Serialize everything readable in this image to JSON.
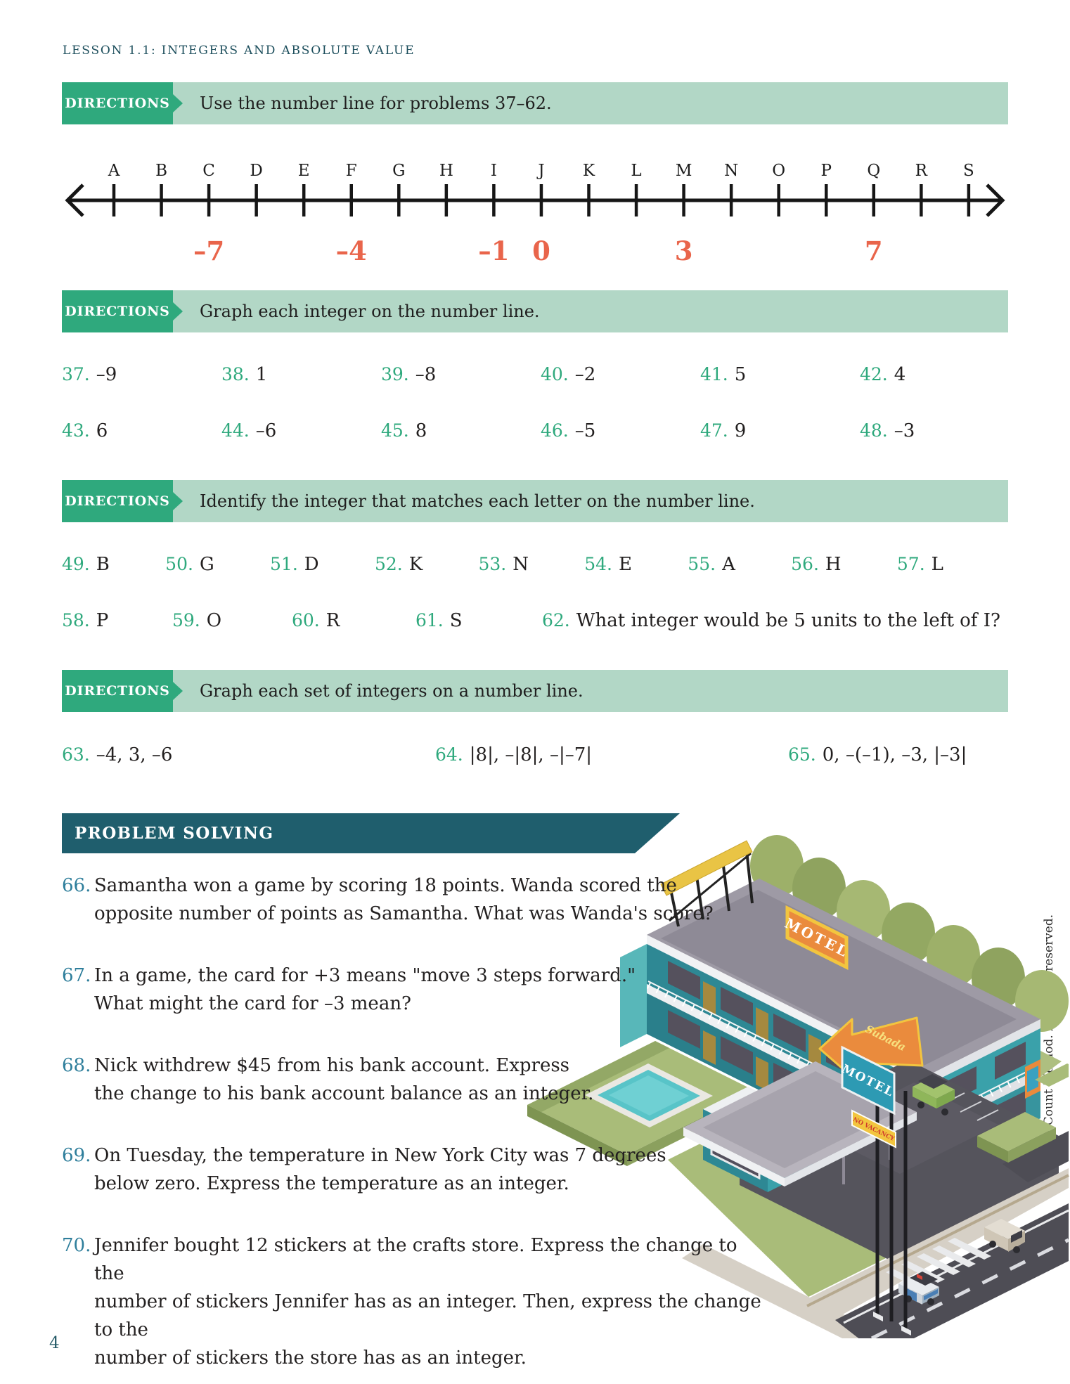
{
  "header": {
    "lesson": "LESSON 1.1: INTEGERS AND ABSOLUTE VALUE"
  },
  "colors": {
    "accent_green": "#2fa97d",
    "band_green": "#b2d7c6",
    "teal_dark": "#1f5e6d",
    "number_blue": "#2e7e9b",
    "numberline_label": "#e9654b"
  },
  "banners": {
    "b1": {
      "label": "DIRECTIONS",
      "text": "Use the number line for problems 37–62."
    },
    "b2": {
      "label": "DIRECTIONS",
      "text": "Graph each integer on the number line."
    },
    "b3": {
      "label": "DIRECTIONS",
      "text": "Identify the integer that matches each letter on the number line."
    },
    "b4": {
      "label": "DIRECTIONS",
      "text": "Graph each set of integers on a number line."
    }
  },
  "number_line": {
    "letters": [
      "A",
      "B",
      "C",
      "D",
      "E",
      "F",
      "G",
      "H",
      "I",
      "J",
      "K",
      "L",
      "M",
      "N",
      "O",
      "P",
      "Q",
      "R",
      "S"
    ],
    "value_labels": [
      {
        "index": 2,
        "text": "–7"
      },
      {
        "index": 5,
        "text": "–4"
      },
      {
        "index": 8,
        "text": "–1"
      },
      {
        "index": 9,
        "text": "0"
      },
      {
        "index": 12,
        "text": "3"
      },
      {
        "index": 16,
        "text": "7"
      }
    ]
  },
  "graph_problems": [
    {
      "num": "37.",
      "val": "–9"
    },
    {
      "num": "38.",
      "val": "1"
    },
    {
      "num": "39.",
      "val": "–8"
    },
    {
      "num": "40.",
      "val": "–2"
    },
    {
      "num": "41.",
      "val": "5"
    },
    {
      "num": "42.",
      "val": "4"
    },
    {
      "num": "43.",
      "val": "6"
    },
    {
      "num": "44.",
      "val": "–6"
    },
    {
      "num": "45.",
      "val": "8"
    },
    {
      "num": "46.",
      "val": "–5"
    },
    {
      "num": "47.",
      "val": "9"
    },
    {
      "num": "48.",
      "val": "–3"
    }
  ],
  "identify_row1": [
    {
      "num": "49.",
      "val": "B"
    },
    {
      "num": "50.",
      "val": "G"
    },
    {
      "num": "51.",
      "val": "D"
    },
    {
      "num": "52.",
      "val": "K"
    },
    {
      "num": "53.",
      "val": "N"
    },
    {
      "num": "54.",
      "val": "E"
    },
    {
      "num": "55.",
      "val": "A"
    },
    {
      "num": "56.",
      "val": "H"
    },
    {
      "num": "57.",
      "val": "L"
    }
  ],
  "identify_row2": [
    {
      "num": "58.",
      "val": "P"
    },
    {
      "num": "59.",
      "val": "O"
    },
    {
      "num": "60.",
      "val": "R"
    },
    {
      "num": "61.",
      "val": "S"
    },
    {
      "num": "62.",
      "val": "What integer would be 5 units to the left of I?"
    }
  ],
  "set_problems": [
    {
      "num": "63.",
      "val": "–4, 3, –6"
    },
    {
      "num": "64.",
      "val": "|8|, –|8|, –|–7|"
    },
    {
      "num": "65.",
      "val": "0, –(–1), –3, |–3|"
    }
  ],
  "problem_solving": {
    "title": "PROBLEM SOLVING",
    "problems": [
      {
        "num": "66.",
        "lines": [
          "Samantha won a game by scoring 18 points. Wanda scored the",
          "opposite number of points as Samantha. What was Wanda's score?"
        ]
      },
      {
        "num": "67.",
        "lines": [
          "In a game, the card for +3 means \"move 3 steps forward.\"",
          "What might the card for –3 mean?"
        ]
      },
      {
        "num": "68.",
        "lines": [
          "Nick withdrew $45 from his bank account. Express",
          "the change to his bank account balance as an integer."
        ]
      },
      {
        "num": "69.",
        "lines": [
          "On Tuesday, the temperature in New York City was 7 degrees",
          "below zero. Express the temperature as an integer."
        ]
      },
      {
        "num": "70.",
        "lines": [
          "Jennifer bought 12 stickers at the crafts store. Express the change to the",
          "number of stickers Jennifer has as an integer. Then, express the change to the",
          "number of stickers the store has as an integer."
        ]
      }
    ]
  },
  "illustration": {
    "roof_sign": "MOTEL",
    "marquee_script": "Subada",
    "marquee_text": "MOTEL",
    "vacancy_sign": "NO VACANCY"
  },
  "footer": {
    "page_number": "4",
    "copyright": "© iCount Method. All rights reserved."
  }
}
